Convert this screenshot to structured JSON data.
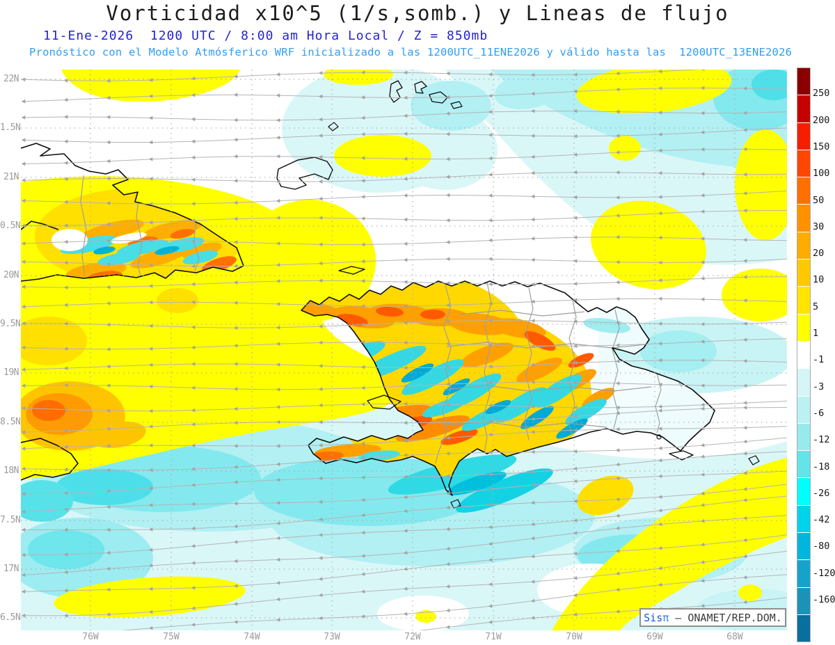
{
  "title": "Vorticidad x10^5 (1/s,somb.) y Lineas de flujo",
  "subtitle_datetime": "11-Ene-2026  1200 UTC / 8:00 am Hora Local / Z = 850mb",
  "subtitle_model": "Pronóstico con el Modelo Atmósferico WRF inicializado a las 1200UTC_11ENE2026 y válido hasta las  1200UTC_13ENE2026",
  "watermark": {
    "brand": "Sis",
    "pi": "π",
    "org": " – ONAMET/REP.DOM."
  },
  "axes": {
    "lat_labels": [
      "22N",
      "1.5N",
      "21N",
      "0.5N",
      "20N",
      "9.5N",
      "19N",
      "8.5N",
      "18N",
      "7.5N",
      "17N",
      "6.5N"
    ],
    "lon_labels": [
      "76W",
      "75W",
      "74W",
      "73W",
      "72W",
      "71W",
      "70W",
      "69W",
      "68W"
    ]
  },
  "colorbar": {
    "unit": "x10^5 1/s",
    "labels": [
      "250",
      "200",
      "150",
      "100",
      "50",
      "30",
      "20",
      "10",
      "5",
      "1",
      "-1",
      "-3",
      "-6",
      "-12",
      "-18",
      "-26",
      "-42",
      "-80",
      "-120",
      "-160"
    ],
    "colors": [
      "#8a0000",
      "#c40000",
      "#f51e00",
      "#ff4600",
      "#ff6f00",
      "#ff9100",
      "#ffac00",
      "#ffc800",
      "#ffe400",
      "#ffff00",
      "#ffffff",
      "#d5f5f6",
      "#bbf1f2",
      "#97ebed",
      "#62e4e8",
      "#00ffff",
      "#00d3ea",
      "#00b6dd",
      "#16a3cb",
      "#1b93b9",
      "#0a6f9c"
    ]
  },
  "field_colors": {
    "pale_cyan": "#daf7f8",
    "med_cyan": "#b2f0f3",
    "deep_cyan": "#84e9ee",
    "bright_cyan": "#3cdde8",
    "yellow": "#ffff00",
    "gold": "#ffe000",
    "orange": "#ffa000",
    "deep_orange": "#ff5a00",
    "stream_gray": "#b4b4b4"
  }
}
